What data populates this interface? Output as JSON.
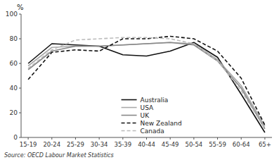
{
  "chart_data": {
    "type": "line",
    "ylabel": "%",
    "source": "Source: OECD Labour Market Statistics",
    "categories": [
      "15-19",
      "20-24",
      "25-29",
      "30-34",
      "35-39",
      "40-44",
      "45-49",
      "50-54",
      "55-59",
      "60-64",
      "65+"
    ],
    "series": [
      {
        "name": "Australia",
        "color": "#111111",
        "line_style": "solid",
        "values": [
          60,
          76,
          75,
          74,
          67,
          66,
          70,
          77,
          65,
          35,
          4
        ]
      },
      {
        "name": "USA",
        "color": "#aaaaaa",
        "line_style": "solid",
        "values": [
          58,
          73,
          74,
          74,
          75,
          76,
          77,
          76,
          63,
          42,
          9
        ]
      },
      {
        "name": "UK",
        "color": "#888888",
        "line_style": "solid",
        "values": [
          55,
          70,
          74,
          74,
          75,
          76,
          77,
          75,
          62,
          40,
          7
        ]
      },
      {
        "name": "New Zealand",
        "color": "#111111",
        "line_style": "dashed",
        "values": [
          47,
          69,
          71,
          70,
          80,
          80,
          82,
          80,
          70,
          48,
          10
        ]
      },
      {
        "name": "Canada",
        "color": "#bbbbbb",
        "line_style": "dashed",
        "values": [
          56,
          71,
          79,
          80,
          81,
          81,
          80,
          76,
          62,
          38,
          7
        ]
      }
    ],
    "ylim": [
      0,
      100
    ],
    "yticks": [
      0,
      20,
      40,
      60,
      80,
      100
    ],
    "grid": false,
    "legend": "bottom"
  }
}
